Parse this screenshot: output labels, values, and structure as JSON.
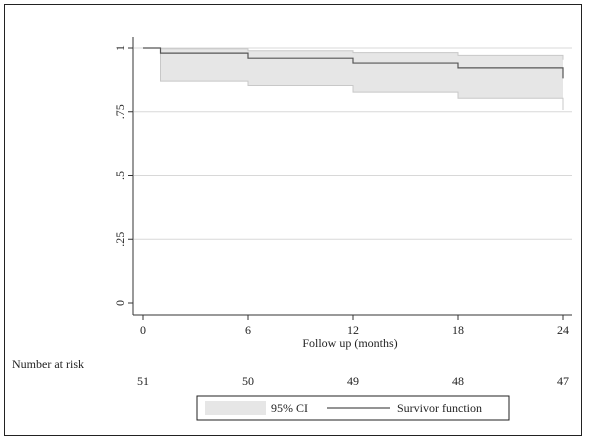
{
  "chart_data": {
    "type": "line",
    "title": "",
    "xlabel": "Follow up (months)",
    "ylabel": "",
    "xlim": [
      0,
      24
    ],
    "ylim": [
      0,
      1
    ],
    "x_ticks": [
      0,
      6,
      12,
      18,
      24
    ],
    "y_ticks": [
      0,
      0.25,
      0.5,
      0.75,
      1
    ],
    "y_tick_labels": [
      "0",
      ".25",
      ".5",
      ".75",
      "1"
    ],
    "grid": "horizontal",
    "series": [
      {
        "name": "Survivor function",
        "color": "#555555",
        "step": true,
        "x": [
          0,
          1,
          6,
          12,
          18,
          24
        ],
        "y": [
          1.0,
          0.98,
          0.96,
          0.941,
          0.922,
          0.881
        ]
      }
    ],
    "ci_band": {
      "name": "95% CI",
      "color": "#e6e6e6",
      "x": [
        0,
        1,
        6,
        12,
        18,
        24
      ],
      "lower": [
        1.0,
        0.87,
        0.853,
        0.827,
        0.803,
        0.757
      ],
      "upper": [
        1.0,
        0.997,
        0.989,
        0.982,
        0.971,
        0.954
      ]
    },
    "legend": {
      "position": "bottom",
      "items": [
        "95% CI",
        "Survivor function"
      ]
    },
    "risk_table": {
      "label": "Number at risk",
      "x": [
        0,
        6,
        12,
        18,
        24
      ],
      "values": [
        "51",
        "50",
        "49",
        "48",
        "47"
      ]
    }
  }
}
